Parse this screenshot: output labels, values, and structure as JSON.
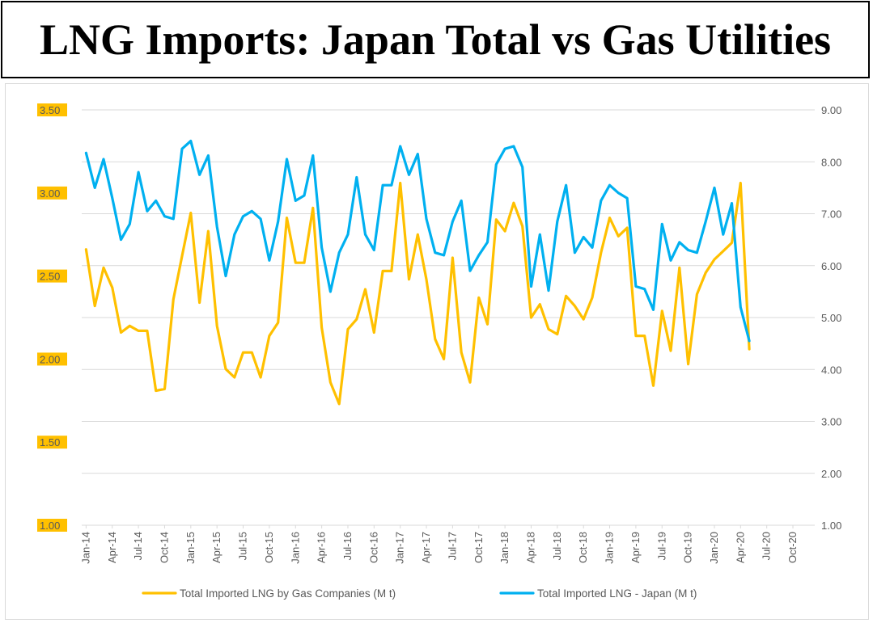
{
  "title": "LNG Imports: Japan Total vs Gas Utilities",
  "chart_data": {
    "type": "line",
    "title": "LNG Imports: Japan Total vs Gas Utilities",
    "x_tick_labels": [
      "Jan-14",
      "Apr-14",
      "Jul-14",
      "Oct-14",
      "Jan-15",
      "Apr-15",
      "Jul-15",
      "Oct-15",
      "Jan-16",
      "Apr-16",
      "Jul-16",
      "Oct-16",
      "Jan-17",
      "Apr-17",
      "Jul-17",
      "Oct-17",
      "Jan-18",
      "Apr-18",
      "Jul-18",
      "Oct-18",
      "Jan-19",
      "Apr-19",
      "Jul-19",
      "Oct-19",
      "Jan-20",
      "Apr-20",
      "Jul-20",
      "Oct-20"
    ],
    "x_range": [
      "Jan-14",
      "Dec-20"
    ],
    "left_axis": {
      "ylim": [
        1.0,
        3.5
      ],
      "tick_labels": [
        "1.00",
        "1.50",
        "2.00",
        "2.50",
        "3.00",
        "3.50"
      ],
      "label_highlight": "#ffc000"
    },
    "right_axis": {
      "ylim": [
        1.0,
        9.0
      ],
      "tick_labels": [
        "1.00",
        "2.00",
        "3.00",
        "4.00",
        "5.00",
        "6.00",
        "7.00",
        "8.00",
        "9.00"
      ]
    },
    "grid": true,
    "legend_position": "bottom",
    "series": [
      {
        "name": "Total Imported LNG by Gas Companies (M t)",
        "axis": "left",
        "color": "#ffc000",
        "start": "Jan-14",
        "values": [
          2.66,
          2.32,
          2.55,
          2.43,
          2.16,
          2.2,
          2.17,
          2.17,
          1.81,
          1.82,
          2.36,
          2.62,
          2.88,
          2.34,
          2.77,
          2.2,
          1.94,
          1.89,
          2.04,
          2.04,
          1.89,
          2.14,
          2.22,
          2.85,
          2.58,
          2.58,
          2.91,
          2.19,
          1.86,
          1.73,
          2.18,
          2.24,
          2.42,
          2.16,
          2.53,
          2.53,
          3.06,
          2.48,
          2.75,
          2.48,
          2.12,
          2.0,
          2.61,
          2.04,
          1.86,
          2.37,
          2.21,
          2.84,
          2.77,
          2.94,
          2.8,
          2.25,
          2.33,
          2.18,
          2.15,
          2.38,
          2.32,
          2.24,
          2.37,
          2.64,
          2.85,
          2.74,
          2.79,
          2.14,
          2.14,
          1.84,
          2.29,
          2.05,
          2.55,
          1.97,
          2.39,
          2.52,
          2.6,
          2.65,
          2.7,
          3.06,
          2.06
        ]
      },
      {
        "name": "Total Imported LNG - Japan (M t)",
        "axis": "right",
        "color": "#00b0f0",
        "start": "Jan-14",
        "values": [
          8.17,
          7.5,
          8.05,
          7.3,
          6.5,
          6.8,
          7.8,
          7.05,
          7.25,
          6.95,
          6.9,
          8.25,
          8.4,
          7.75,
          8.12,
          6.75,
          5.8,
          6.6,
          6.95,
          7.05,
          6.9,
          6.1,
          6.85,
          8.05,
          7.25,
          7.35,
          8.12,
          6.35,
          5.5,
          6.25,
          6.6,
          7.7,
          6.6,
          6.3,
          7.55,
          7.55,
          8.3,
          7.75,
          8.15,
          6.9,
          6.25,
          6.2,
          6.85,
          7.25,
          5.9,
          6.2,
          6.45,
          7.95,
          8.25,
          8.3,
          7.9,
          5.6,
          6.6,
          5.52,
          6.85,
          7.55,
          6.25,
          6.55,
          6.35,
          7.25,
          7.55,
          7.4,
          7.3,
          5.6,
          5.55,
          5.15,
          6.8,
          6.1,
          6.45,
          6.3,
          6.25,
          6.85,
          7.5,
          6.6,
          7.2,
          5.2,
          4.55
        ]
      }
    ]
  }
}
